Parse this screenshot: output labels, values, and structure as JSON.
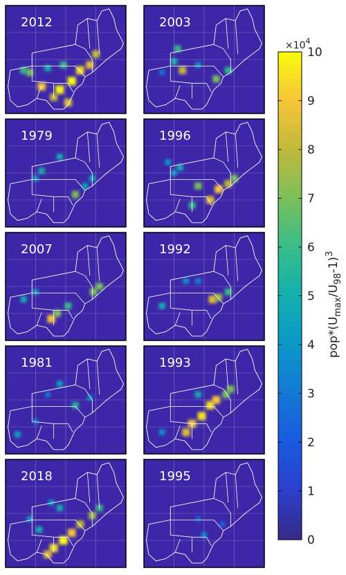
{
  "chart_data": {
    "type": "heatmap",
    "description_layout": "grid",
    "panels": [
      {
        "year": "2012",
        "hotspots": [
          [
            0.3,
            0.75,
            0.9
          ],
          [
            0.45,
            0.78,
            1.0
          ],
          [
            0.55,
            0.7,
            1.0
          ],
          [
            0.62,
            0.6,
            0.95
          ],
          [
            0.7,
            0.55,
            0.85
          ],
          [
            0.75,
            0.45,
            0.8
          ],
          [
            0.2,
            0.62,
            0.7
          ],
          [
            0.4,
            0.85,
            0.8
          ],
          [
            0.52,
            0.9,
            0.85
          ],
          [
            0.35,
            0.58,
            0.5
          ],
          [
            0.15,
            0.6,
            0.6
          ],
          [
            0.48,
            0.55,
            0.6
          ]
        ]
      },
      {
        "year": "2003",
        "hotspots": [
          [
            0.32,
            0.6,
            0.8
          ],
          [
            0.6,
            0.68,
            0.7
          ],
          [
            0.7,
            0.6,
            0.6
          ],
          [
            0.28,
            0.4,
            0.6
          ],
          [
            0.25,
            0.52,
            0.5
          ],
          [
            0.45,
            0.55,
            0.4
          ],
          [
            0.15,
            0.62,
            0.3
          ]
        ]
      },
      {
        "year": "1979",
        "hotspots": [
          [
            0.3,
            0.48,
            0.5
          ],
          [
            0.45,
            0.35,
            0.5
          ],
          [
            0.58,
            0.7,
            0.7
          ],
          [
            0.66,
            0.62,
            0.45
          ],
          [
            0.25,
            0.55,
            0.4
          ],
          [
            0.72,
            0.55,
            0.45
          ]
        ]
      },
      {
        "year": "1996",
        "hotspots": [
          [
            0.45,
            0.62,
            0.7
          ],
          [
            0.55,
            0.75,
            0.85
          ],
          [
            0.62,
            0.65,
            0.9
          ],
          [
            0.7,
            0.6,
            0.8
          ],
          [
            0.75,
            0.55,
            0.7
          ],
          [
            0.4,
            0.8,
            0.6
          ],
          [
            0.3,
            0.45,
            0.5
          ],
          [
            0.25,
            0.5,
            0.4
          ],
          [
            0.2,
            0.4,
            0.4
          ]
        ]
      },
      {
        "year": "2007",
        "hotspots": [
          [
            0.38,
            0.8,
            0.9
          ],
          [
            0.43,
            0.75,
            0.7
          ],
          [
            0.52,
            0.68,
            0.6
          ],
          [
            0.73,
            0.55,
            0.7
          ],
          [
            0.78,
            0.5,
            0.7
          ],
          [
            0.25,
            0.55,
            0.4
          ],
          [
            0.15,
            0.62,
            0.5
          ]
        ]
      },
      {
        "year": "1992",
        "hotspots": [
          [
            0.57,
            0.62,
            0.85
          ],
          [
            0.62,
            0.6,
            0.75
          ],
          [
            0.7,
            0.55,
            0.6
          ],
          [
            0.35,
            0.45,
            0.4
          ],
          [
            0.15,
            0.68,
            0.5
          ],
          [
            0.45,
            0.45,
            0.35
          ]
        ]
      },
      {
        "year": "1981",
        "hotspots": [
          [
            0.58,
            0.55,
            0.55
          ],
          [
            0.45,
            0.35,
            0.45
          ],
          [
            0.35,
            0.45,
            0.3
          ],
          [
            0.7,
            0.48,
            0.35
          ],
          [
            0.1,
            0.82,
            0.45
          ],
          [
            0.25,
            0.7,
            0.3
          ]
        ]
      },
      {
        "year": "1993",
        "hotspots": [
          [
            0.55,
            0.55,
            0.95
          ],
          [
            0.6,
            0.5,
            0.9
          ],
          [
            0.48,
            0.65,
            0.95
          ],
          [
            0.4,
            0.72,
            0.9
          ],
          [
            0.35,
            0.8,
            0.85
          ],
          [
            0.68,
            0.45,
            0.7
          ],
          [
            0.72,
            0.4,
            0.7
          ],
          [
            0.45,
            0.45,
            0.5
          ],
          [
            0.15,
            0.8,
            0.4
          ]
        ]
      },
      {
        "year": "2018",
        "hotspots": [
          [
            0.4,
            0.82,
            0.95
          ],
          [
            0.48,
            0.75,
            1.0
          ],
          [
            0.55,
            0.68,
            0.9
          ],
          [
            0.62,
            0.6,
            0.8
          ],
          [
            0.72,
            0.52,
            0.75
          ],
          [
            0.78,
            0.45,
            0.6
          ],
          [
            0.35,
            0.88,
            0.85
          ],
          [
            0.28,
            0.65,
            0.5
          ],
          [
            0.2,
            0.55,
            0.4
          ],
          [
            0.45,
            0.45,
            0.5
          ],
          [
            0.38,
            0.4,
            0.4
          ]
        ]
      },
      {
        "year": "1995",
        "hotspots": [
          [
            0.5,
            0.7,
            0.35
          ],
          [
            0.45,
            0.55,
            0.25
          ],
          [
            0.65,
            0.6,
            0.25
          ]
        ]
      }
    ],
    "colorbar": {
      "label_pre": "pop*(U",
      "label_sub1": "max",
      "label_mid": "/U",
      "label_sub2": "98",
      "label_post": "-1)",
      "label_sup": "3",
      "exponent_base": "×10",
      "exponent_power": "4",
      "ticks": [
        "0",
        "1",
        "2",
        "3",
        "4",
        "5",
        "6",
        "7",
        "8",
        "9",
        "10"
      ],
      "range": [
        0,
        10
      ]
    },
    "colors": {
      "background": "#3d26a8",
      "outline": "#ffffff",
      "frame": "#000000"
    }
  }
}
